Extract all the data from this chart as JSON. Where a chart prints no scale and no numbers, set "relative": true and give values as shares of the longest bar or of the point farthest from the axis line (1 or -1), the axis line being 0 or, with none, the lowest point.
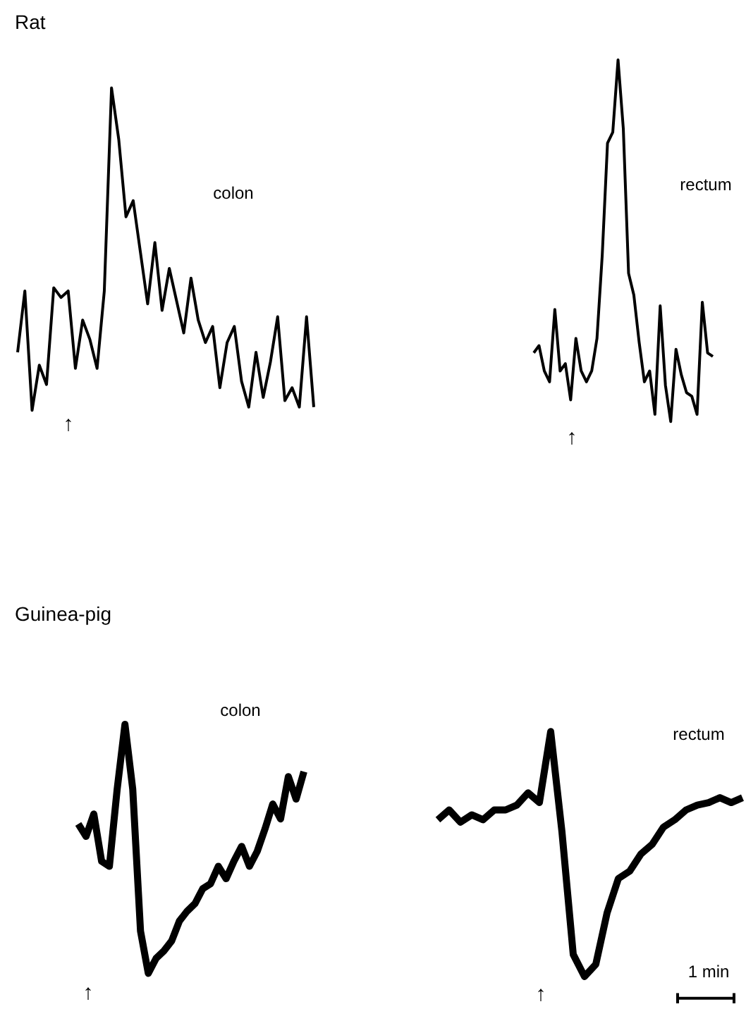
{
  "chart_data": [
    {
      "type": "line",
      "title": "Rat",
      "relative": true,
      "grid": false,
      "categories": [
        null,
        null,
        null,
        null,
        null,
        null,
        null,
        null,
        null,
        null,
        null,
        null,
        null,
        null,
        null,
        null,
        null,
        null,
        null,
        null,
        null,
        null,
        null,
        null,
        null,
        null,
        null,
        null,
        null,
        null,
        null,
        null,
        null,
        null,
        null,
        null,
        null,
        null,
        null,
        null,
        null,
        null
      ],
      "series": [
        {
          "color": "#000000",
          "values": [
            0.18,
            0.37,
            0,
            0.14,
            0.08,
            0.38,
            0.35,
            0.37,
            0.13,
            0.28,
            0.22,
            0.13,
            0.37,
            1.0,
            0.84,
            0.6,
            0.65,
            0.49,
            0.33,
            0.52,
            0.31,
            0.44,
            0.34,
            0.24,
            0.41,
            0.28,
            0.21,
            0.26,
            0.07,
            0.21,
            0.26,
            0.09,
            0.01,
            0.18,
            0.04,
            0.15,
            0.29,
            0.03,
            0.07,
            0.01,
            0.29,
            0.01
          ]
        }
      ],
      "annotations": [
        "colon",
        "↑"
      ]
    },
    {
      "type": "line",
      "relative": true,
      "grid": false,
      "categories": [
        null,
        null,
        null,
        null,
        null,
        null,
        null,
        null,
        null,
        null,
        null,
        null,
        null,
        null,
        null,
        null,
        null,
        null,
        null,
        null,
        null,
        null,
        null,
        null,
        null,
        null,
        null,
        null,
        null,
        null,
        null,
        null,
        null,
        null,
        null
      ],
      "series": [
        {
          "color": "#000000",
          "values": [
            0.19,
            0.21,
            0.14,
            0.11,
            0.31,
            0.14,
            0.16,
            0.06,
            0.23,
            0.14,
            0.11,
            0.14,
            0.23,
            0.46,
            0.77,
            0.8,
            1,
            0.81,
            0.41,
            0.35,
            0.22,
            0.11,
            0.14,
            0.02,
            0.32,
            0.1,
            0,
            0.2,
            0.13,
            0.08,
            0.07,
            0.02,
            0.33,
            0.19,
            0.18
          ]
        }
      ],
      "annotations": [
        "rectum",
        "↑"
      ]
    },
    {
      "type": "line",
      "title": "Guinea-pig",
      "relative": true,
      "grid": false,
      "categories": [
        null,
        null,
        null,
        null,
        null,
        null,
        null,
        null,
        null,
        null,
        null,
        null,
        null,
        null,
        null,
        null,
        null,
        null,
        null,
        null,
        null,
        null,
        null,
        null,
        null,
        null,
        null,
        null,
        null,
        null
      ],
      "series": [
        {
          "color": "#000000",
          "values": [
            0.6,
            0.55,
            0.64,
            0.45,
            0.43,
            0.74,
            1,
            0.74,
            0.17,
            0,
            0.06,
            0.09,
            0.13,
            0.21,
            0.25,
            0.28,
            0.34,
            0.36,
            0.43,
            0.38,
            0.45,
            0.51,
            0.43,
            0.49,
            0.58,
            0.68,
            0.62,
            0.79,
            0.7,
            0.81
          ]
        }
      ],
      "annotations": [
        "colon",
        "↑"
      ]
    },
    {
      "type": "line",
      "relative": true,
      "grid": false,
      "categories": [
        null,
        null,
        null,
        null,
        null,
        null,
        null,
        null,
        null,
        null,
        null,
        null,
        null,
        null,
        null,
        null,
        null,
        null,
        null,
        null,
        null,
        null,
        null,
        null,
        null,
        null,
        null,
        null
      ],
      "series": [
        {
          "color": "#000000",
          "values": [
            0.64,
            0.68,
            0.63,
            0.66,
            0.64,
            0.68,
            0.68,
            0.7,
            0.75,
            0.71,
            1,
            0.59,
            0.09,
            0,
            0.05,
            0.26,
            0.4,
            0.43,
            0.5,
            0.54,
            0.61,
            0.64,
            0.68,
            0.7,
            0.71,
            0.73,
            0.71,
            0.73
          ]
        }
      ],
      "annotations": [
        "rectum",
        "↑",
        "1 min"
      ]
    }
  ]
}
